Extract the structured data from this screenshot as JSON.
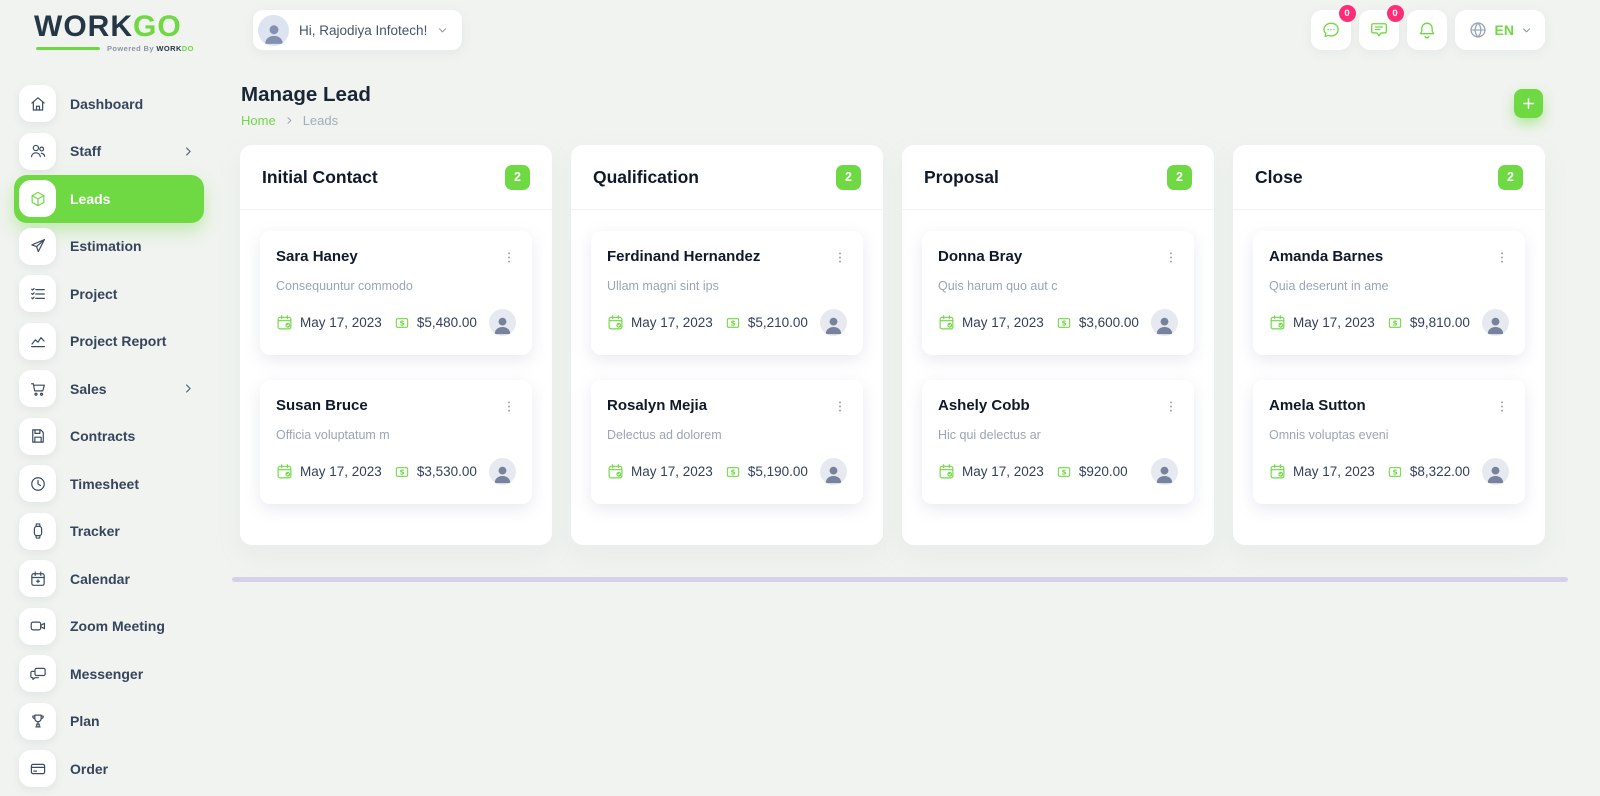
{
  "colors": {
    "accent": "#6fd943",
    "badge": "#ff2d78",
    "bg": "#f0f3ef",
    "textDark": "#1b2634",
    "textMuted": "#9aa5b5",
    "scrollbar": "#d7d0ea"
  },
  "brand": {
    "name_primary": "WORK",
    "name_accent": "GO",
    "powered_by": "Powered By ",
    "powered_brand_primary": "WORK",
    "powered_brand_accent": "DO"
  },
  "topbar": {
    "greeting": "Hi, Rajodiya Infotech!",
    "chat_badge": "0",
    "mail_badge": "0",
    "language": "EN"
  },
  "sidebar": {
    "items": [
      {
        "label": "Dashboard",
        "icon": "home"
      },
      {
        "label": "Staff",
        "icon": "users",
        "has_submenu": true
      },
      {
        "label": "Leads",
        "icon": "cube",
        "active": true
      },
      {
        "label": "Estimation",
        "icon": "send"
      },
      {
        "label": "Project",
        "icon": "list-check"
      },
      {
        "label": "Project Report",
        "icon": "chart"
      },
      {
        "label": "Sales",
        "icon": "cart",
        "has_submenu": true
      },
      {
        "label": "Contracts",
        "icon": "save"
      },
      {
        "label": "Timesheet",
        "icon": "clock"
      },
      {
        "label": "Tracker",
        "icon": "watch"
      },
      {
        "label": "Calendar",
        "icon": "calendar"
      },
      {
        "label": "Zoom Meeting",
        "icon": "video"
      },
      {
        "label": "Messenger",
        "icon": "messenger"
      },
      {
        "label": "Plan",
        "icon": "trophy"
      },
      {
        "label": "Order",
        "icon": "credit-card"
      }
    ]
  },
  "page": {
    "title": "Manage Lead",
    "breadcrumb_home": "Home",
    "breadcrumb_current": "Leads"
  },
  "board": {
    "columns": [
      {
        "title": "Initial Contact",
        "count": "2",
        "cards": [
          {
            "name": "Sara Haney",
            "desc": "Consequuntur commodo",
            "date": "May 17, 2023",
            "amount": "$5,480.00"
          },
          {
            "name": "Susan Bruce",
            "desc": "Officia voluptatum m",
            "date": "May 17, 2023",
            "amount": "$3,530.00"
          }
        ]
      },
      {
        "title": "Qualification",
        "count": "2",
        "cards": [
          {
            "name": "Ferdinand Hernandez",
            "desc": "Ullam magni sint ips",
            "date": "May 17, 2023",
            "amount": "$5,210.00"
          },
          {
            "name": "Rosalyn Mejia",
            "desc": "Delectus ad dolorem",
            "date": "May 17, 2023",
            "amount": "$5,190.00"
          }
        ]
      },
      {
        "title": "Proposal",
        "count": "2",
        "cards": [
          {
            "name": "Donna Bray",
            "desc": "Quis harum quo aut c",
            "date": "May 17, 2023",
            "amount": "$3,600.00"
          },
          {
            "name": "Ashely Cobb",
            "desc": "Hic qui delectus ar",
            "date": "May 17, 2023",
            "amount": "$920.00"
          }
        ]
      },
      {
        "title": "Close",
        "count": "2",
        "cards": [
          {
            "name": "Amanda Barnes",
            "desc": "Quia deserunt in ame",
            "date": "May 17, 2023",
            "amount": "$9,810.00"
          },
          {
            "name": "Amela Sutton",
            "desc": "Omnis voluptas eveni",
            "date": "May 17, 2023",
            "amount": "$8,322.00"
          }
        ]
      }
    ]
  }
}
